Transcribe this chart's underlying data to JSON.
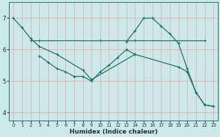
{
  "bg_color": "#cce8e8",
  "grid_color_v": "#e8a0a0",
  "grid_color_h": "#e8a0a0",
  "line_color": "#1a6b6b",
  "xlabel": "Humidex (Indice chaleur)",
  "xlim": [
    -0.5,
    23.5
  ],
  "ylim": [
    3.75,
    7.5
  ],
  "yticks": [
    4,
    5,
    6,
    7
  ],
  "xticks": [
    0,
    1,
    2,
    3,
    4,
    5,
    6,
    7,
    8,
    9,
    10,
    11,
    12,
    13,
    14,
    15,
    16,
    17,
    18,
    19,
    20,
    21,
    22,
    23
  ],
  "line_bell_x": [
    13,
    14,
    15,
    16,
    17,
    18,
    19,
    20,
    21,
    22,
    23
  ],
  "line_bell_y": [
    6.25,
    6.6,
    7.0,
    7.0,
    6.75,
    6.5,
    6.2,
    5.4,
    4.65,
    4.25,
    4.2
  ],
  "line_flat_x": [
    2,
    3,
    10,
    14,
    22
  ],
  "line_flat_y": [
    6.3,
    6.3,
    6.3,
    6.3,
    6.3
  ],
  "line_diag_x": [
    0,
    1,
    2,
    3,
    5,
    8,
    9,
    14,
    19,
    20,
    21,
    22,
    23
  ],
  "line_diag_y": [
    7.0,
    6.7,
    6.35,
    6.1,
    5.85,
    5.35,
    5.05,
    5.85,
    5.45,
    5.3,
    4.65,
    4.25,
    4.2
  ],
  "line_zigzag_x": [
    3,
    4,
    5,
    6,
    7,
    8,
    9,
    10,
    11,
    12,
    13,
    14
  ],
  "line_zigzag_y": [
    5.8,
    5.6,
    5.4,
    5.3,
    5.15,
    5.15,
    5.0,
    5.3,
    5.5,
    5.75,
    6.0,
    5.85
  ]
}
